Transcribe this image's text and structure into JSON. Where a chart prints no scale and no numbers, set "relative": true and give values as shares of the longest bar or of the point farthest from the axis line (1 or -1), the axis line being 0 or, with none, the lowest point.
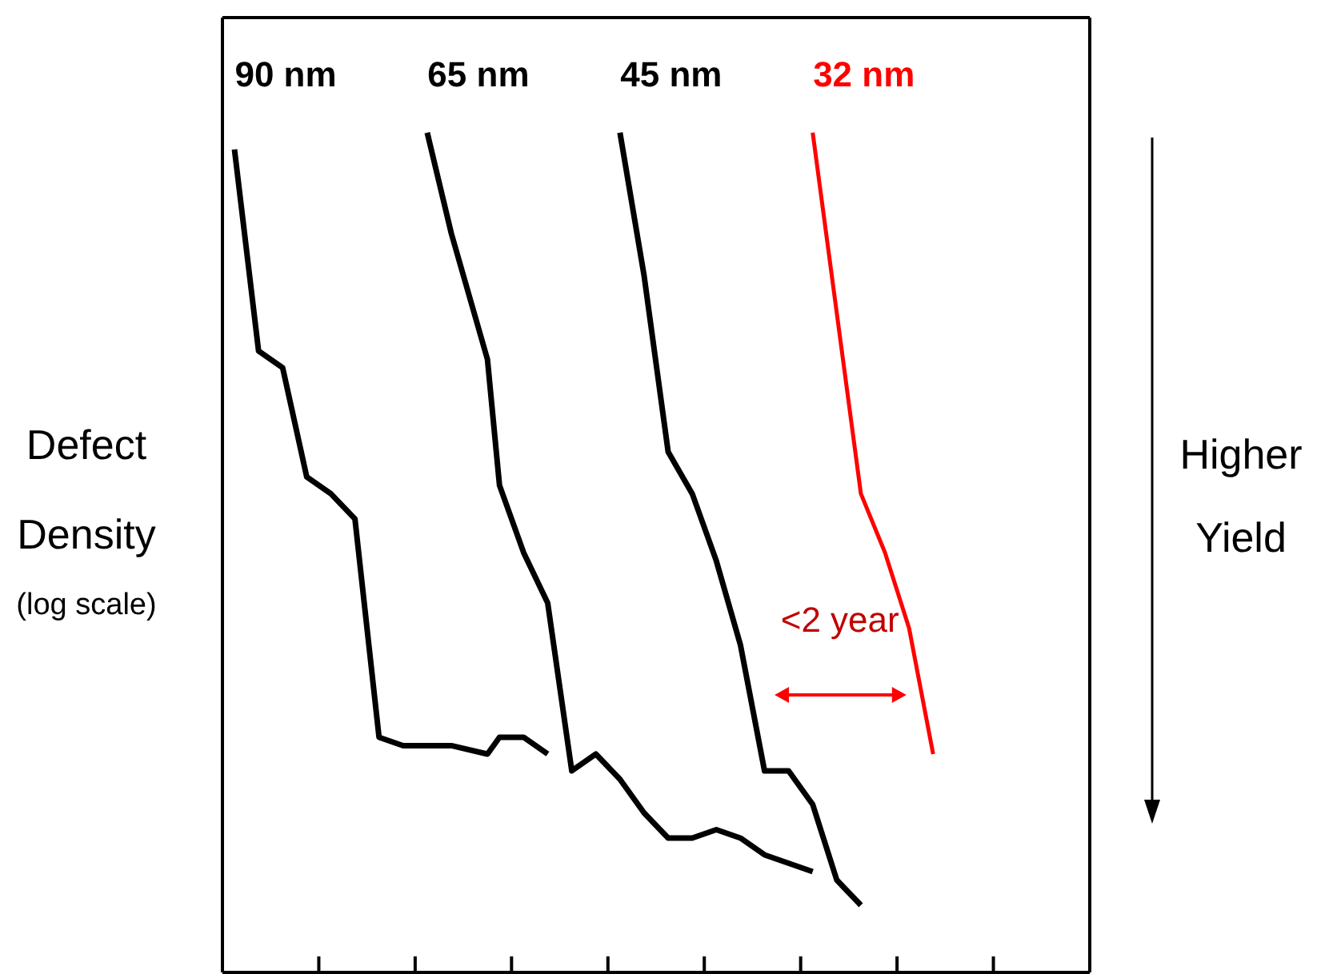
{
  "chart_data": {
    "type": "line",
    "relative": true,
    "ylabel": "Defect Density",
    "annotations": [
      "(log scale)",
      "Higher Yield",
      "<2 year"
    ],
    "categories": [
      null,
      null,
      null,
      null,
      null,
      null,
      null,
      null,
      null,
      null,
      null,
      null,
      null,
      null,
      null,
      null,
      null,
      null,
      null,
      null,
      null,
      null,
      null,
      null,
      null,
      null,
      null,
      null,
      null,
      null,
      null,
      null,
      null,
      null,
      null,
      null,
      null,
      null,
      null,
      null,
      null,
      null,
      null,
      null,
      null,
      null,
      null,
      null,
      null,
      null,
      null,
      null,
      null,
      null,
      null,
      null,
      null,
      null,
      null,
      null,
      null,
      null,
      null,
      null,
      null,
      null,
      null,
      null,
      null,
      null,
      null,
      null
    ],
    "series": [
      {
        "name": "90 nm",
        "color": "#000000",
        "values": [
          null,
          0.98,
          null,
          0.74,
          null,
          0.72,
          null,
          0.59,
          null,
          0.57,
          null,
          0.54,
          null,
          0.28,
          null,
          0.27,
          null,
          null,
          null,
          0.27,
          null,
          null,
          0.26,
          0.28,
          null,
          0.28,
          null,
          0.26,
          null,
          null,
          null,
          null,
          null,
          null,
          null,
          null,
          null,
          null,
          null,
          null,
          null,
          null,
          null,
          null,
          null,
          null,
          null,
          null,
          null,
          null,
          null,
          null,
          null,
          null,
          null,
          null,
          null,
          null,
          null,
          null,
          null,
          null,
          null,
          null,
          null,
          null,
          null,
          null,
          null,
          null,
          null,
          null
        ]
      },
      {
        "name": "65 nm",
        "color": "#000000",
        "values": [
          null,
          null,
          null,
          null,
          null,
          null,
          null,
          null,
          null,
          null,
          null,
          null,
          null,
          null,
          null,
          null,
          null,
          1.0,
          null,
          0.88,
          null,
          null,
          0.73,
          0.58,
          null,
          0.5,
          null,
          0.44,
          null,
          0.24,
          null,
          0.26,
          null,
          0.23,
          null,
          0.19,
          null,
          0.16,
          null,
          0.16,
          null,
          0.17,
          null,
          0.16,
          null,
          0.14,
          null,
          0.13,
          null,
          0.12,
          null,
          null,
          null,
          null,
          null,
          null,
          null,
          null,
          null,
          null,
          null,
          null,
          null,
          null,
          null,
          null,
          null,
          null,
          null,
          null,
          null,
          null
        ]
      },
      {
        "name": "45 nm",
        "color": "#000000",
        "values": [
          null,
          null,
          null,
          null,
          null,
          null,
          null,
          null,
          null,
          null,
          null,
          null,
          null,
          null,
          null,
          null,
          null,
          null,
          null,
          null,
          null,
          null,
          null,
          null,
          null,
          null,
          null,
          null,
          null,
          null,
          null,
          null,
          null,
          1.0,
          null,
          0.83,
          null,
          0.62,
          null,
          0.57,
          null,
          0.49,
          null,
          0.39,
          null,
          0.24,
          null,
          0.24,
          null,
          0.2,
          null,
          0.11,
          null,
          0.08,
          null,
          null,
          null,
          null,
          null,
          null,
          null,
          null,
          null,
          null,
          null,
          null,
          null,
          null,
          null,
          null,
          null,
          null
        ]
      },
      {
        "name": "32 nm",
        "color": "#ff0000",
        "values": [
          null,
          null,
          null,
          null,
          null,
          null,
          null,
          null,
          null,
          null,
          null,
          null,
          null,
          null,
          null,
          null,
          null,
          null,
          null,
          null,
          null,
          null,
          null,
          null,
          null,
          null,
          null,
          null,
          null,
          null,
          null,
          null,
          null,
          null,
          null,
          null,
          null,
          null,
          null,
          null,
          null,
          null,
          null,
          null,
          null,
          null,
          null,
          null,
          null,
          1.0,
          null,
          null,
          null,
          0.57,
          null,
          0.5,
          null,
          0.41,
          null,
          0.26,
          null,
          null,
          null,
          null,
          null,
          null,
          null,
          null,
          null,
          null,
          null,
          null
        ]
      }
    ],
    "line_style": "solid",
    "marker": "none"
  }
}
